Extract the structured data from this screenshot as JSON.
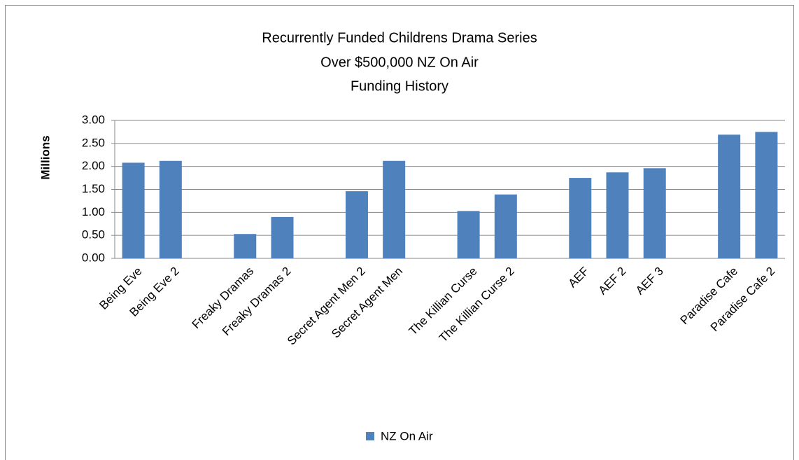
{
  "chart_data": {
    "type": "bar",
    "title": [
      "Recurrently Funded Childrens Drama Series",
      "Over $500,000  NZ On Air",
      "Funding History"
    ],
    "y_label": "Millions",
    "categories": [
      "Being Eve",
      "Being Eve 2",
      null,
      "Freaky Dramas",
      "Freaky Dramas 2",
      null,
      "Secret Agent Men 2",
      "Secret Agent Men",
      null,
      "The Killian Curse",
      "The Killian Curse 2",
      null,
      "AEF",
      "AEF 2",
      "AEF 3",
      null,
      "Paradise Cafe",
      "Paradise Cafe 2"
    ],
    "series": [
      {
        "name": "NZ On Air",
        "color": "#4f81bd",
        "values": [
          2.08,
          2.12,
          null,
          0.53,
          0.9,
          null,
          1.46,
          2.12,
          null,
          1.03,
          1.39,
          null,
          1.75,
          1.87,
          1.96,
          null,
          2.69,
          2.75
        ]
      }
    ],
    "ylim": [
      0,
      3
    ],
    "yticks": [
      {
        "value": 0,
        "label": "0.00"
      },
      {
        "value": 0.5,
        "label": "0.50"
      },
      {
        "value": 1,
        "label": "1.00"
      },
      {
        "value": 1.5,
        "label": "1.50"
      },
      {
        "value": 2,
        "label": "2.00"
      },
      {
        "value": 2.5,
        "label": "2.50"
      },
      {
        "value": 3,
        "label": "3.00"
      }
    ],
    "grid": true,
    "legend": "bottom"
  }
}
